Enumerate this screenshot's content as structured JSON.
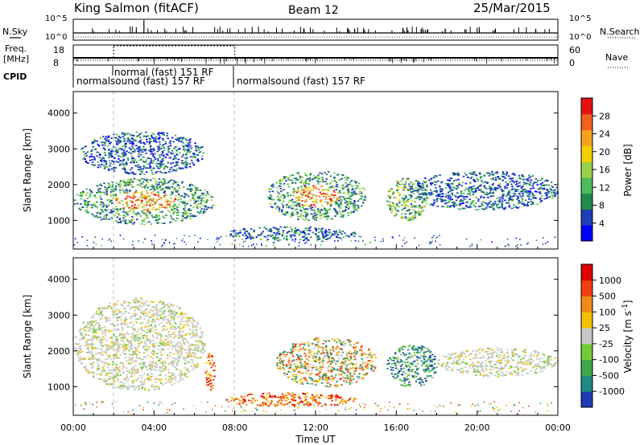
{
  "header": {
    "station": "King Salmon (fitACF)",
    "beam": "Beam 12",
    "date": "25/Mar/2015"
  },
  "top_strips": {
    "nsky_label": "N.Sky",
    "nsearch_label": "N.Search",
    "nsky_ticks": [
      "10^5",
      "10^0"
    ],
    "nsearch_ticks": [
      "10^5",
      "10^0"
    ],
    "freq_label_1": "Freq.",
    "freq_label_2": "[MHz]",
    "freq_ticks": [
      "18",
      "8"
    ],
    "nave_label": "Nave",
    "nave_ticks": [
      "60",
      "0"
    ],
    "cpid_label": "CPID",
    "cpid_segments": [
      "normalsound (fast) 157 RF",
      "normal (fast) 151 RF",
      "normalsound (fast) 157 RF"
    ]
  },
  "chart_data": [
    {
      "type": "heatmap",
      "name": "power-panel",
      "ylabel": "Slant Range [km]",
      "ylim": [
        200,
        4600
      ],
      "yticks": [
        1000,
        2000,
        3000,
        4000
      ],
      "xlim": [
        0,
        24
      ],
      "colorbar": {
        "label": "Power [dB]",
        "ticks": [
          "28",
          "24",
          "20",
          "16",
          "12",
          "8",
          "4"
        ],
        "colors": [
          "#0000ff",
          "#1e3fb8",
          "#208a4e",
          "#4dbb5a",
          "#98d24a",
          "#f2d000",
          "#f7a020",
          "#f06020",
          "#e81010"
        ]
      },
      "echo_regions_hours_km": [
        {
          "x": [
            0.0,
            7.0
          ],
          "y": [
            900,
            2200
          ],
          "level": "strong"
        },
        {
          "x": [
            0.3,
            6.5
          ],
          "y": [
            2300,
            3500
          ],
          "level": "weak"
        },
        {
          "x": [
            7.5,
            14.0
          ],
          "y": [
            450,
            850
          ],
          "level": "weak"
        },
        {
          "x": [
            9.5,
            14.5
          ],
          "y": [
            1000,
            2400
          ],
          "level": "strong"
        },
        {
          "x": [
            15.5,
            17.5
          ],
          "y": [
            1000,
            2200
          ],
          "level": "medium"
        },
        {
          "x": [
            16.5,
            24.0
          ],
          "y": [
            1300,
            2400
          ],
          "level": "weak"
        }
      ]
    },
    {
      "type": "heatmap",
      "name": "velocity-panel",
      "ylabel": "Slant Range [km]",
      "ylim": [
        200,
        4600
      ],
      "yticks": [
        1000,
        2000,
        3000,
        4000
      ],
      "xlim": [
        0,
        24
      ],
      "xticks": [
        "00:00",
        "04:00",
        "08:00",
        "12:00",
        "16:00",
        "20:00",
        "00:00"
      ],
      "xlabel": "Time UT",
      "colorbar": {
        "label": "Velocity [m s-1]",
        "ticks": [
          "1000",
          "500",
          "100",
          "25",
          "-25",
          "-100",
          "-500",
          "-1000"
        ],
        "colors": [
          "#1c3cb4",
          "#208a80",
          "#3fa84a",
          "#72c93a",
          "#c8c8c8",
          "#f2c200",
          "#f08a18",
          "#f04010",
          "#e00000"
        ]
      },
      "echo_regions_hours_km": [
        {
          "x": [
            0.0,
            6.5
          ],
          "y": [
            900,
            3500
          ],
          "sign": "ground-scatter"
        },
        {
          "x": [
            6.5,
            7.0
          ],
          "y": [
            900,
            2000
          ],
          "sign": "negative"
        },
        {
          "x": [
            7.5,
            14.0
          ],
          "y": [
            450,
            850
          ],
          "sign": "negative"
        },
        {
          "x": [
            10.0,
            15.0
          ],
          "y": [
            1000,
            2400
          ],
          "sign": "mixed"
        },
        {
          "x": [
            15.5,
            18.0
          ],
          "y": [
            1000,
            2200
          ],
          "sign": "positive"
        },
        {
          "x": [
            18.0,
            24.0
          ],
          "y": [
            1300,
            2100
          ],
          "sign": "ground-scatter"
        }
      ]
    }
  ]
}
